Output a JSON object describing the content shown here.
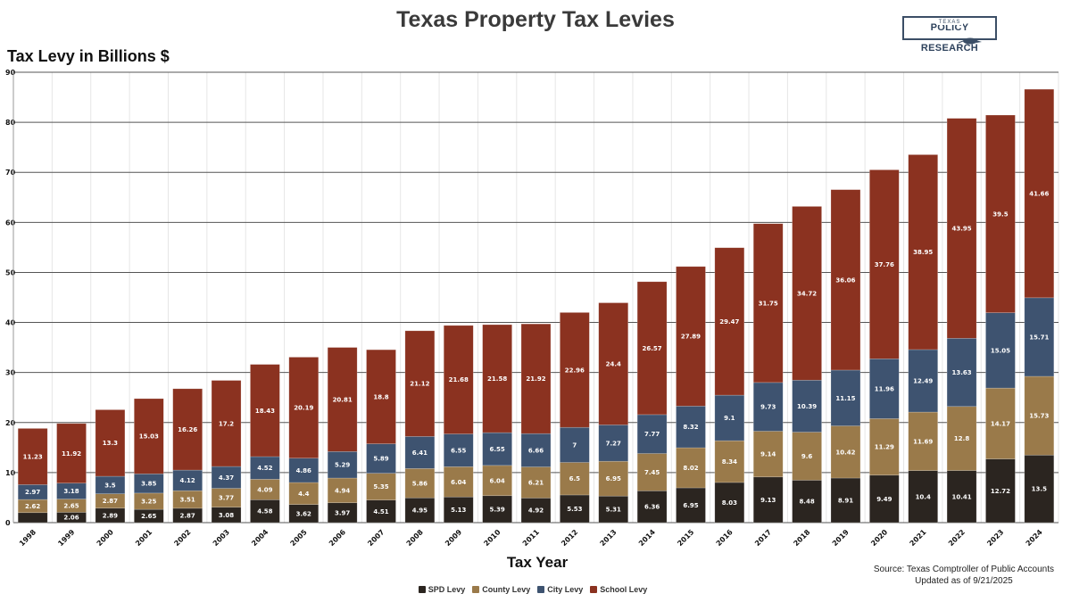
{
  "header": {
    "logo_small": "TEXAS",
    "logo_main": "POLICY RESEARCH"
  },
  "colors": {
    "spd": "#2b2520",
    "county": "#9a7a4a",
    "city": "#3e5370",
    "school": "#8b3220",
    "grid_major": "#555555",
    "grid_minor": "#e6e6e6"
  },
  "source": {
    "line1": "Source: Texas Comptroller of Public Accounts",
    "line2": "Updated as of 9/21/2025"
  },
  "chart_data": {
    "type": "bar",
    "stacked": true,
    "title": "Texas Property Tax Levies",
    "xlabel": "Tax Year",
    "ylabel": "Tax Levy in Billions $",
    "ylim": [
      0,
      90
    ],
    "yticks": [
      "0",
      "10",
      "20",
      "30",
      "40",
      "50",
      "60",
      "70",
      "80",
      "90"
    ],
    "grid": true,
    "legend_position": "bottom",
    "categories": [
      "1998",
      "1999",
      "2000",
      "2001",
      "2002",
      "2003",
      "2004",
      "2005",
      "2006",
      "2007",
      "2008",
      "2009",
      "2010",
      "2011",
      "2012",
      "2013",
      "2014",
      "2015",
      "2016",
      "2017",
      "2018",
      "2019",
      "2020",
      "2021",
      "2022",
      "2023",
      "2024"
    ],
    "series": [
      {
        "name": "SPD Levy",
        "key": "spd",
        "values": [
          2.0,
          2.06,
          2.89,
          2.65,
          2.87,
          3.08,
          4.58,
          3.62,
          3.97,
          4.51,
          4.95,
          5.13,
          5.39,
          4.92,
          5.53,
          5.31,
          6.36,
          6.95,
          8.03,
          9.13,
          8.48,
          8.91,
          9.49,
          10.4,
          10.41,
          12.72,
          13.5
        ],
        "labels": [
          "",
          "2.06",
          "2.89",
          "2.65",
          "2.87",
          "3.08",
          "4.58",
          "3.62",
          "3.97",
          "4.51",
          "4.95",
          "5.13",
          "5.39",
          "4.92",
          "5.53",
          "5.31",
          "6.36",
          "6.95",
          "8.03",
          "9.13",
          "8.48",
          "8.91",
          "9.49",
          "10.4",
          "10.41",
          "12.72",
          "13.5"
        ]
      },
      {
        "name": "County Levy",
        "key": "county",
        "values": [
          2.62,
          2.65,
          2.87,
          3.25,
          3.51,
          3.77,
          4.09,
          4.4,
          4.94,
          5.35,
          5.86,
          6.04,
          6.04,
          6.21,
          6.5,
          6.95,
          7.45,
          8.02,
          8.34,
          9.14,
          9.6,
          10.42,
          11.29,
          11.69,
          12.8,
          14.17,
          15.73
        ],
        "labels": [
          "2.62",
          "2.65",
          "2.87",
          "3.25",
          "3.51",
          "3.77",
          "4.09",
          "4.4",
          "4.94",
          "5.35",
          "5.86",
          "6.04",
          "6.04",
          "6.21",
          "6.5",
          "6.95",
          "7.45",
          "8.02",
          "8.34",
          "9.14",
          "9.6",
          "10.42",
          "11.29",
          "11.69",
          "12.8",
          "14.17",
          "15.73"
        ]
      },
      {
        "name": "City Levy",
        "key": "city",
        "values": [
          2.97,
          3.18,
          3.5,
          3.85,
          4.12,
          4.37,
          4.52,
          4.86,
          5.29,
          5.89,
          6.41,
          6.55,
          6.55,
          6.66,
          7,
          7.27,
          7.77,
          8.32,
          9.1,
          9.73,
          10.39,
          11.15,
          11.96,
          12.49,
          13.63,
          15.05,
          15.71
        ],
        "labels": [
          "2.97",
          "3.18",
          "3.5",
          "3.85",
          "4.12",
          "4.37",
          "4.52",
          "4.86",
          "5.29",
          "5.89",
          "6.41",
          "6.55",
          "6.55",
          "6.66",
          "7",
          "7.27",
          "7.77",
          "8.32",
          "9.1",
          "9.73",
          "10.39",
          "11.15",
          "11.96",
          "12.49",
          "13.63",
          "15.05",
          "15.71"
        ]
      },
      {
        "name": "School Levy",
        "key": "school",
        "values": [
          11.23,
          11.92,
          13.3,
          15.03,
          16.26,
          17.2,
          18.43,
          20.19,
          20.81,
          18.8,
          21.12,
          21.68,
          21.58,
          21.92,
          22.96,
          24.4,
          26.57,
          27.89,
          29.47,
          31.75,
          34.72,
          36.06,
          37.76,
          38.95,
          43.95,
          39.5,
          41.66
        ],
        "labels": [
          "11.23",
          "11.92",
          "13.3",
          "15.03",
          "16.26",
          "17.2",
          "18.43",
          "20.19",
          "20.81",
          "18.8",
          "21.12",
          "21.68",
          "21.58",
          "21.92",
          "22.96",
          "24.4",
          "26.57",
          "27.89",
          "29.47",
          "31.75",
          "34.72",
          "36.06",
          "37.76",
          "38.95",
          "43.95",
          "39.5",
          "41.66"
        ]
      }
    ]
  }
}
